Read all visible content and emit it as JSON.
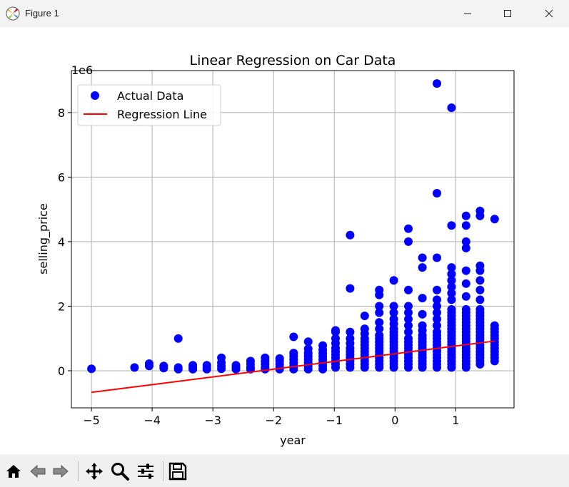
{
  "window": {
    "title": "Figure 1",
    "controls": [
      "minimize-icon",
      "maximize-icon",
      "close-icon"
    ]
  },
  "toolbar": {
    "buttons": [
      "home-icon",
      "back-icon",
      "forward-icon",
      "pan-icon",
      "zoom-icon",
      "configure-subplots-icon",
      "save-icon"
    ]
  },
  "chart_data": {
    "type": "scatter",
    "title": "Linear Regression on Car Data",
    "xlabel": "year",
    "ylabel": "selling_price",
    "y_offset_text": "1e6",
    "xlim": [
      -5.33,
      1.96
    ],
    "ylim": [
      -1.15,
      9.3
    ],
    "y_scale_factor": 1000000,
    "xticks": [
      -5,
      -4,
      -3,
      -2,
      -1,
      0,
      1
    ],
    "xtick_labels": [
      "−5",
      "−4",
      "−3",
      "−2",
      "−1",
      "0",
      "1"
    ],
    "yticks": [
      0,
      2,
      4,
      6,
      8
    ],
    "ytick_labels": [
      "0",
      "2",
      "4",
      "6",
      "8"
    ],
    "grid": true,
    "legend": {
      "position": "top-left",
      "entries": [
        "Actual Data",
        "Regression Line"
      ]
    },
    "series": [
      {
        "name": "Actual Data",
        "kind": "scatter",
        "color": "#0000ff",
        "clusters": [
          {
            "x": -5.0,
            "values": [
              0.06
            ]
          },
          {
            "x": -4.29,
            "values": [
              0.1
            ]
          },
          {
            "x": -4.05,
            "values": [
              0.15,
              0.22
            ]
          },
          {
            "x": -3.81,
            "values": [
              0.08,
              0.15
            ]
          },
          {
            "x": -3.57,
            "values": [
              0.05,
              0.1,
              1.0
            ]
          },
          {
            "x": -3.33,
            "values": [
              0.05,
              0.1,
              0.17
            ]
          },
          {
            "x": -3.1,
            "values": [
              0.05,
              0.1,
              0.17
            ]
          },
          {
            "x": -2.86,
            "values": [
              0.06,
              0.15,
              0.25,
              0.4
            ]
          },
          {
            "x": -2.62,
            "values": [
              0.05,
              0.1,
              0.17
            ]
          },
          {
            "x": -2.38,
            "values": [
              0.05,
              0.1,
              0.2,
              0.3
            ]
          },
          {
            "x": -2.14,
            "values": [
              0.05,
              0.1,
              0.2,
              0.3,
              0.4
            ]
          },
          {
            "x": -1.9,
            "values": [
              0.05,
              0.1,
              0.2,
              0.3,
              0.38
            ]
          },
          {
            "x": -1.67,
            "values": [
              0.05,
              0.15,
              0.25,
              0.35,
              0.45,
              0.55,
              1.05
            ]
          },
          {
            "x": -1.43,
            "values": [
              0.05,
              0.15,
              0.25,
              0.35,
              0.45,
              0.55,
              0.68,
              0.9
            ]
          },
          {
            "x": -1.19,
            "values": [
              0.05,
              0.15,
              0.25,
              0.35,
              0.45,
              0.55,
              0.65,
              0.78
            ]
          },
          {
            "x": -0.98,
            "values": [
              0.1,
              0.2,
              0.3,
              0.4,
              0.5,
              0.6,
              0.7,
              0.85,
              1.0,
              1.2,
              1.25
            ]
          },
          {
            "x": -0.74,
            "values": [
              0.1,
              0.2,
              0.3,
              0.4,
              0.5,
              0.6,
              0.7,
              0.85,
              1.0,
              1.2,
              2.55,
              4.2
            ]
          },
          {
            "x": -0.5,
            "values": [
              0.1,
              0.2,
              0.3,
              0.4,
              0.5,
              0.6,
              0.7,
              0.8,
              0.9,
              1.0,
              1.15,
              1.3,
              1.7
            ]
          },
          {
            "x": -0.26,
            "values": [
              0.1,
              0.2,
              0.3,
              0.4,
              0.5,
              0.6,
              0.7,
              0.8,
              0.9,
              1.0,
              1.1,
              1.3,
              1.5,
              1.8,
              2.0,
              2.35,
              2.5
            ]
          },
          {
            "x": -0.02,
            "values": [
              0.1,
              0.2,
              0.3,
              0.4,
              0.5,
              0.6,
              0.7,
              0.8,
              0.9,
              1.0,
              1.1,
              1.2,
              1.3,
              1.45,
              1.6,
              1.8,
              2.0,
              2.8
            ]
          },
          {
            "x": 0.22,
            "values": [
              0.1,
              0.2,
              0.3,
              0.4,
              0.5,
              0.6,
              0.7,
              0.8,
              0.9,
              1.0,
              1.2,
              1.4,
              1.6,
              1.8,
              2.0,
              2.5,
              4.0,
              4.4
            ]
          },
          {
            "x": 0.45,
            "values": [
              0.1,
              0.2,
              0.3,
              0.4,
              0.5,
              0.6,
              0.7,
              0.8,
              0.9,
              1.0,
              1.1,
              1.25,
              1.4,
              1.75,
              2.25,
              3.2,
              3.5
            ]
          },
          {
            "x": 0.69,
            "values": [
              0.1,
              0.2,
              0.3,
              0.4,
              0.5,
              0.6,
              0.7,
              0.8,
              0.9,
              1.0,
              1.1,
              1.2,
              1.4,
              1.6,
              1.8,
              2.0,
              2.2,
              2.5,
              3.5,
              5.5,
              8.9
            ]
          },
          {
            "x": 0.93,
            "values": [
              0.1,
              0.2,
              0.3,
              0.4,
              0.5,
              0.6,
              0.7,
              0.8,
              0.9,
              1.0,
              1.1,
              1.2,
              1.3,
              1.4,
              1.5,
              1.6,
              1.7,
              1.8,
              1.9,
              2.2,
              2.4,
              2.6,
              2.8,
              3.0,
              3.2,
              4.5,
              8.15
            ]
          },
          {
            "x": 1.17,
            "values": [
              0.1,
              0.2,
              0.3,
              0.4,
              0.5,
              0.6,
              0.7,
              0.8,
              0.9,
              1.0,
              1.1,
              1.2,
              1.3,
              1.4,
              1.5,
              1.6,
              1.7,
              1.8,
              1.9,
              2.3,
              2.7,
              3.1,
              3.8,
              4.0,
              4.5,
              4.8
            ]
          },
          {
            "x": 1.4,
            "values": [
              0.2,
              0.3,
              0.4,
              0.5,
              0.6,
              0.7,
              0.8,
              0.9,
              1.0,
              1.1,
              1.2,
              1.3,
              1.4,
              1.5,
              1.6,
              1.7,
              1.8,
              1.9,
              2.2,
              2.5,
              2.8,
              3.1,
              3.25,
              4.8,
              4.95
            ]
          },
          {
            "x": 1.64,
            "values": [
              0.3,
              0.4,
              0.5,
              0.6,
              0.7,
              0.8,
              0.9,
              1.0,
              1.1,
              1.2,
              1.3,
              1.4,
              4.7
            ]
          }
        ]
      },
      {
        "name": "Regression Line",
        "kind": "line",
        "color": "#ff0000",
        "x": [
          -5.0,
          1.64
        ],
        "y": [
          -0.67,
          0.92
        ]
      }
    ]
  }
}
